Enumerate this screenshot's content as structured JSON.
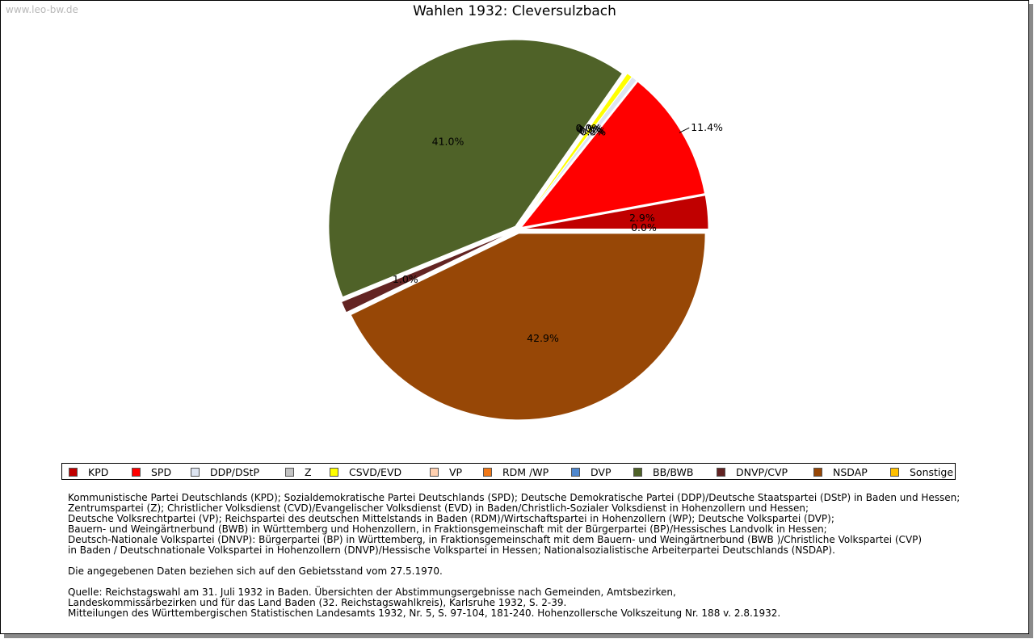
{
  "watermark": "www.leo-bw.de",
  "chart_data": {
    "type": "pie",
    "title": "Wahlen 1932: Cleversulzbach",
    "slices": [
      {
        "label": "KPD",
        "value": 2.9,
        "display": "2.9%",
        "color": "#c00000"
      },
      {
        "label": "SPD",
        "value": 11.4,
        "display": "11.4%",
        "color": "#ff0000"
      },
      {
        "label": "DDP/DStP",
        "value": 0.5,
        "display": "0.5%",
        "color": "#dde4f1"
      },
      {
        "label": "Z",
        "value": 0.0,
        "display": "0.0%",
        "color": "#c3c3c3"
      },
      {
        "label": "CSVD/EVD",
        "value": 0.5,
        "display": "0.5%",
        "color": "#ffff00"
      },
      {
        "label": "VP",
        "value": 0.0,
        "display": "0.0%",
        "color": "#ffd0b0"
      },
      {
        "label": "RDM /WP",
        "value": 0.0,
        "display": "0.0%",
        "color": "#f07818"
      },
      {
        "label": "DVP",
        "value": 0.0,
        "display": "0.0%",
        "color": "#4f88cf"
      },
      {
        "label": "BB/BWB",
        "value": 41.0,
        "display": "41.0%",
        "color": "#4f6228"
      },
      {
        "label": "DNVP/CVP",
        "value": 1.0,
        "display": "1.0%",
        "color": "#632423"
      },
      {
        "label": "NSDAP",
        "value": 42.9,
        "display": "42.9%",
        "color": "#974706"
      },
      {
        "label": "Sonstige",
        "value": 0.0,
        "display": "0.0%",
        "color": "#ffc000"
      }
    ],
    "legend_position": "bottom"
  },
  "notes": [
    "Kommunistische Partei Deutschlands (KPD); Sozialdemokratische Partei Deutschlands (SPD); Deutsche Demokratische Partei (DDP)/Deutsche Staatspartei (DStP) in Baden und Hessen;",
    "Zentrumspartei (Z); Christlicher Volksdienst (CVD)/Evangelischer Volksdienst (EVD) in Baden/Christlich-Sozialer Volksdienst in Hohenzollern und Hessen;",
    "Deutsche Volksrechtpartei (VP); Reichspartei des deutschen Mittelstands in Baden (RDM)/Wirtschaftspartei in Hohenzollern (WP); Deutsche Volkspartei (DVP);",
    "Bauern- und Weingärtnerbund (BWB) in Württemberg und Hohenzollern, in Fraktionsgemeinschaft mit der Bürgerpartei (BP)/Hessisches Landvolk in Hessen;",
    "Deutsch-Nationale Volkspartei (DNVP): Bürgerpartei (BP) in Württemberg, in Fraktionsgemeinschaft mit dem Bauern- und Weingärtnerbund (BWB )/Christliche Volkspartei (CVP)",
    "in Baden / Deutschnationale Volkspartei in Hohenzollern (DNVP)/Hessische Volkspartei in Hessen; Nationalsozialistische Arbeiterpartei Deutschlands (NSDAP)."
  ],
  "gebietsstand": "Die angegebenen Daten beziehen sich auf den Gebietsstand vom 27.5.1970.",
  "source": [
    "Quelle: Reichstagswahl am 31. Juli 1932 in Baden. Übersichten der Abstimmungsergebnisse nach Gemeinden, Amtsbezirken,",
    "Landeskommissärbezirken und für das Land Baden (32. Reichstagswahlkreis), Karlsruhe 1932, S. 2-39.",
    "Mitteilungen des Württembergischen Statistischen Landesamts 1932, Nr. 5, S. 97-104, 181-240. Hohenzollersche Volkszeitung Nr. 188 v. 2.8.1932."
  ]
}
